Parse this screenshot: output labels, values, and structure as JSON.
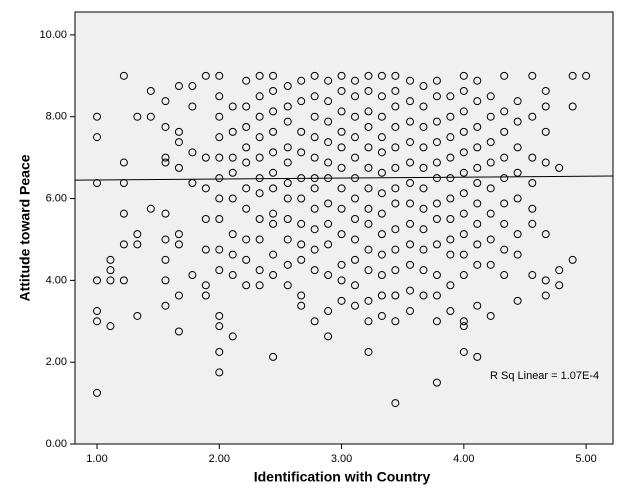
{
  "chart_data": {
    "type": "scatter",
    "x_label": "Identification with Country",
    "y_label": "Attitude toward Peace",
    "annotation": "R Sq Linear = 1.07E-4",
    "xlim": [
      0.82,
      5.22
    ],
    "ylim": [
      0,
      10.56
    ],
    "xticks": [
      {
        "value": 1,
        "label": "1.00"
      },
      {
        "value": 2,
        "label": "2.00"
      },
      {
        "value": 3,
        "label": "3.00"
      },
      {
        "value": 4,
        "label": "4.00"
      },
      {
        "value": 5,
        "label": "5.00"
      }
    ],
    "yticks": [
      {
        "value": 0,
        "label": "0.00"
      },
      {
        "value": 2,
        "label": "2.00"
      },
      {
        "value": 4,
        "label": "4.00"
      },
      {
        "value": 6,
        "label": "6.00"
      },
      {
        "value": 8,
        "label": "8.00"
      },
      {
        "value": 10,
        "label": "10.00"
      }
    ],
    "color": "#000000",
    "fit_line": {
      "x": [
        0.82,
        5.22
      ],
      "values": [
        6.45,
        6.55
      ]
    },
    "x": [
      1,
      1,
      1,
      1,
      1,
      1,
      1,
      1.11,
      1.11,
      1.11,
      1.11,
      1.22,
      1.22,
      1.22,
      1.22,
      1.22,
      1.22,
      1.33,
      1.33,
      1.33,
      1.33,
      1.44,
      1.44,
      1.44,
      1.56,
      1.56,
      1.56,
      1.56,
      1.56,
      1.56,
      1.56,
      1.56,
      1.56,
      1.67,
      1.67,
      1.67,
      1.67,
      1.67,
      1.67,
      1.67,
      1.67,
      1.78,
      1.78,
      1.78,
      1.78,
      1.78,
      1.89,
      1.89,
      1.89,
      1.89,
      1.89,
      1.89,
      1.89,
      2,
      2,
      2,
      2,
      2,
      2,
      2,
      2,
      2,
      2,
      2,
      2,
      2,
      2,
      2.11,
      2.11,
      2.11,
      2.11,
      2.11,
      2.11,
      2.11,
      2.11,
      2.11,
      2.22,
      2.22,
      2.22,
      2.22,
      2.22,
      2.22,
      2.22,
      2.22,
      2.22,
      2.22,
      2.33,
      2.33,
      2.33,
      2.33,
      2.33,
      2.33,
      2.33,
      2.33,
      2.33,
      2.33,
      2.33,
      2.44,
      2.44,
      2.44,
      2.44,
      2.44,
      2.44,
      2.44,
      2.44,
      2.44,
      2.44,
      2.44,
      2.44,
      2.56,
      2.56,
      2.56,
      2.56,
      2.56,
      2.56,
      2.56,
      2.56,
      2.56,
      2.56,
      2.56,
      2.67,
      2.67,
      2.67,
      2.67,
      2.67,
      2.67,
      2.67,
      2.67,
      2.67,
      2.67,
      2.67,
      2.78,
      2.78,
      2.78,
      2.78,
      2.78,
      2.78,
      2.78,
      2.78,
      2.78,
      2.78,
      2.78,
      2.78,
      2.89,
      2.89,
      2.89,
      2.89,
      2.89,
      2.89,
      2.89,
      2.89,
      2.89,
      2.89,
      2.89,
      2.89,
      3,
      3,
      3,
      3,
      3,
      3,
      3,
      3,
      3,
      3,
      3,
      3,
      3.11,
      3.11,
      3.11,
      3.11,
      3.11,
      3.11,
      3.11,
      3.11,
      3.11,
      3.11,
      3.11,
      3.11,
      3.22,
      3.22,
      3.22,
      3.22,
      3.22,
      3.22,
      3.22,
      3.22,
      3.22,
      3.22,
      3.22,
      3.22,
      3.22,
      3.22,
      3.33,
      3.33,
      3.33,
      3.33,
      3.33,
      3.33,
      3.33,
      3.33,
      3.33,
      3.33,
      3.33,
      3.33,
      3.33,
      3.44,
      3.44,
      3.44,
      3.44,
      3.44,
      3.44,
      3.44,
      3.44,
      3.44,
      3.44,
      3.44,
      3.44,
      3.44,
      3.44,
      3.56,
      3.56,
      3.56,
      3.56,
      3.56,
      3.56,
      3.56,
      3.56,
      3.56,
      3.56,
      3.56,
      3.56,
      3.67,
      3.67,
      3.67,
      3.67,
      3.67,
      3.67,
      3.67,
      3.67,
      3.67,
      3.67,
      3.67,
      3.78,
      3.78,
      3.78,
      3.78,
      3.78,
      3.78,
      3.78,
      3.78,
      3.78,
      3.78,
      3.78,
      3.78,
      3.78,
      3.89,
      3.89,
      3.89,
      3.89,
      3.89,
      3.89,
      3.89,
      3.89,
      3.89,
      3.89,
      3.89,
      4,
      4,
      4,
      4,
      4,
      4,
      4,
      4,
      4,
      4,
      4,
      4,
      4,
      4,
      4.11,
      4.11,
      4.11,
      4.11,
      4.11,
      4.11,
      4.11,
      4.11,
      4.11,
      4.11,
      4.11,
      4.11,
      4.22,
      4.22,
      4.22,
      4.22,
      4.22,
      4.22,
      4.22,
      4.22,
      4.22,
      4.33,
      4.33,
      4.33,
      4.33,
      4.33,
      4.33,
      4.33,
      4.33,
      4.33,
      4.44,
      4.44,
      4.44,
      4.44,
      4.44,
      4.44,
      4.44,
      4.44,
      4.56,
      4.56,
      4.56,
      4.56,
      4.56,
      4.56,
      4.56,
      4.67,
      4.67,
      4.67,
      4.67,
      4.67,
      4.67,
      4.67,
      4.78,
      4.78,
      4.78,
      4.89,
      4.89,
      4.89,
      5
    ],
    "values": [
      8.0,
      7.5,
      6.38,
      4.0,
      3.25,
      3.0,
      1.25,
      4.5,
      4.25,
      4.0,
      2.88,
      9.0,
      6.88,
      6.38,
      5.63,
      4.88,
      4.0,
      8.0,
      5.13,
      4.88,
      3.13,
      8.63,
      8.0,
      5.75,
      8.38,
      7.75,
      7.0,
      6.88,
      5.63,
      5.0,
      4.5,
      4.0,
      3.38,
      8.75,
      7.63,
      7.38,
      6.75,
      5.13,
      4.88,
      3.63,
      2.75,
      8.75,
      8.25,
      7.13,
      6.38,
      4.13,
      9.0,
      7.0,
      6.25,
      5.5,
      4.75,
      3.88,
      3.63,
      9.0,
      8.5,
      8.0,
      7.5,
      7.0,
      6.5,
      6.0,
      5.5,
      4.75,
      4.25,
      3.13,
      2.88,
      2.25,
      1.75,
      8.25,
      7.63,
      7.0,
      6.63,
      6.0,
      5.13,
      4.63,
      4.13,
      2.63,
      8.88,
      8.25,
      7.75,
      7.25,
      6.88,
      6.25,
      5.75,
      5.0,
      4.5,
      3.88,
      9.0,
      8.5,
      8.0,
      7.5,
      7.0,
      6.5,
      6.13,
      5.5,
      5.0,
      4.25,
      3.88,
      9.0,
      8.63,
      8.13,
      7.63,
      7.13,
      6.63,
      6.25,
      5.63,
      5.38,
      4.63,
      4.13,
      2.13,
      8.75,
      8.25,
      7.88,
      7.25,
      6.88,
      6.38,
      6.0,
      5.5,
      5.0,
      4.38,
      3.88,
      8.88,
      8.38,
      7.63,
      7.13,
      6.5,
      6.0,
      5.38,
      4.88,
      4.5,
      3.63,
      3.38,
      9.0,
      8.5,
      8.0,
      7.5,
      7.0,
      6.5,
      6.25,
      5.75,
      5.25,
      4.75,
      4.25,
      3.0,
      8.88,
      8.38,
      7.88,
      7.38,
      6.88,
      6.5,
      5.88,
      5.38,
      4.88,
      4.13,
      3.25,
      2.63,
      9.0,
      8.63,
      8.13,
      7.63,
      7.25,
      6.75,
      6.25,
      5.75,
      5.13,
      4.38,
      4.0,
      3.5,
      8.88,
      8.5,
      8.0,
      7.5,
      7.0,
      6.5,
      6.0,
      5.5,
      5.0,
      4.5,
      3.88,
      3.38,
      9.0,
      8.63,
      8.13,
      7.75,
      7.25,
      6.75,
      6.25,
      5.75,
      5.38,
      4.75,
      4.25,
      3.5,
      3.0,
      2.25,
      9.0,
      8.5,
      8.0,
      7.5,
      7.13,
      6.63,
      6.13,
      5.63,
      5.13,
      4.63,
      4.13,
      3.63,
      3.13,
      9.0,
      8.63,
      8.25,
      7.75,
      7.25,
      6.75,
      6.25,
      5.88,
      5.25,
      4.75,
      4.25,
      3.63,
      3.0,
      1.0,
      8.88,
      8.38,
      7.88,
      7.38,
      6.88,
      6.38,
      5.88,
      5.38,
      4.88,
      4.38,
      3.75,
      3.25,
      8.75,
      8.25,
      7.75,
      7.25,
      6.75,
      6.25,
      5.75,
      5.25,
      4.75,
      4.25,
      3.63,
      8.88,
      8.5,
      7.88,
      7.38,
      6.88,
      6.5,
      5.88,
      5.5,
      4.88,
      4.13,
      3.63,
      3.0,
      1.5,
      8.5,
      8.0,
      7.5,
      7.0,
      6.5,
      6.0,
      5.5,
      5.0,
      4.63,
      3.88,
      3.25,
      9.0,
      8.63,
      8.13,
      7.63,
      7.13,
      6.63,
      6.13,
      5.63,
      5.13,
      4.63,
      4.13,
      3.0,
      2.88,
      2.25,
      8.88,
      8.38,
      7.75,
      7.25,
      6.75,
      6.38,
      5.88,
      5.38,
      4.88,
      4.38,
      3.38,
      2.13,
      8.5,
      8.0,
      7.38,
      6.88,
      6.25,
      5.63,
      5.0,
      4.38,
      3.13,
      9.0,
      8.13,
      7.63,
      7.0,
      6.5,
      5.88,
      5.38,
      4.75,
      4.13,
      8.38,
      7.88,
      7.25,
      6.63,
      6.0,
      5.13,
      4.63,
      3.5,
      9.0,
      8.0,
      7.0,
      6.38,
      5.75,
      5.38,
      4.13,
      8.63,
      8.25,
      7.63,
      6.88,
      5.13,
      4.0,
      3.63,
      6.75,
      4.25,
      3.88,
      9.0,
      8.25,
      4.5,
      9.0
    ]
  }
}
